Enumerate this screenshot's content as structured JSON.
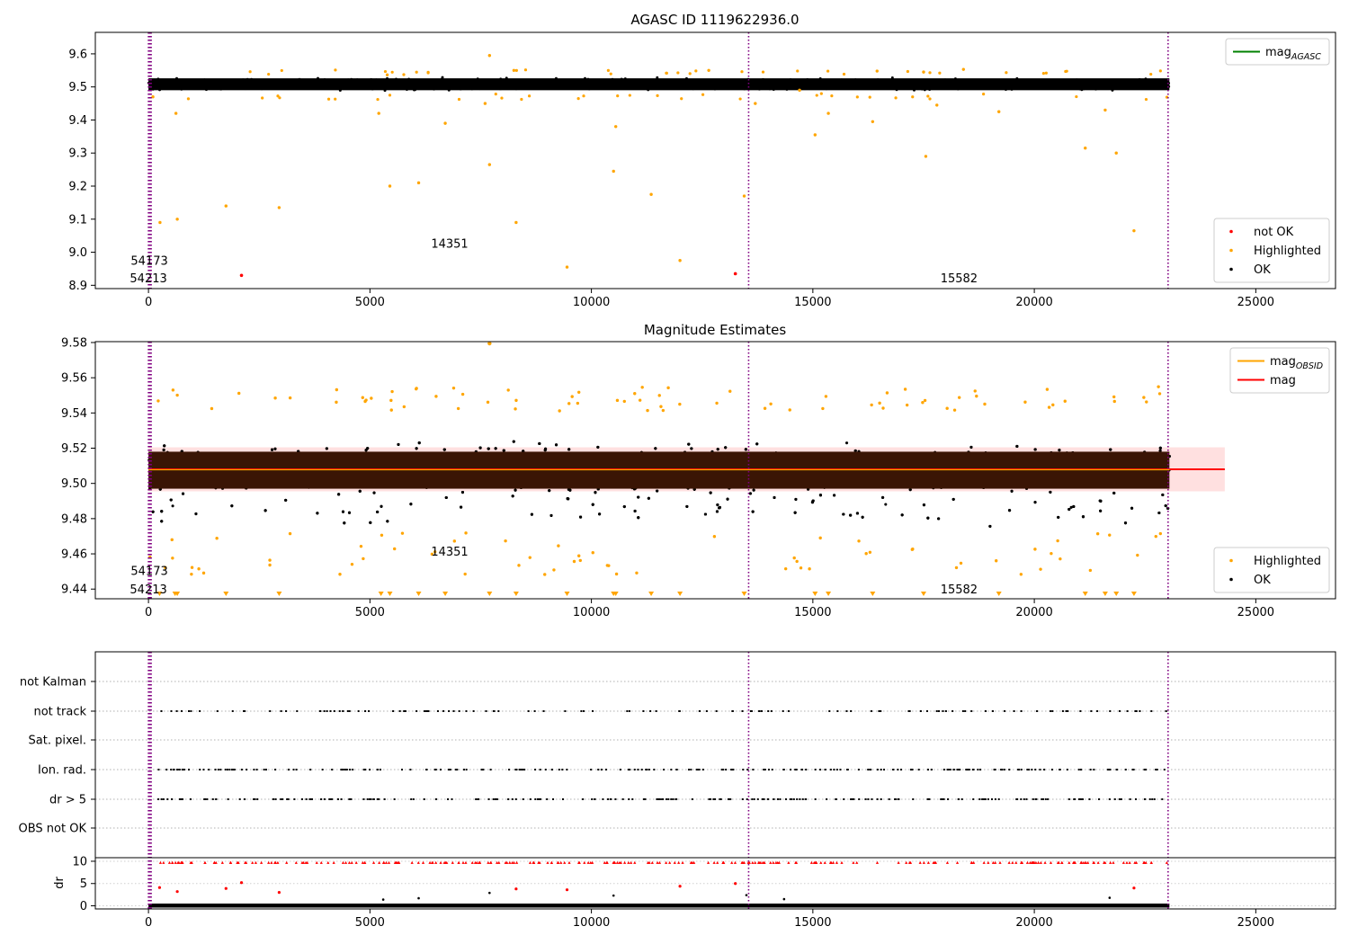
{
  "chart_data": [
    {
      "type": "scatter",
      "title": "AGASC ID 1119622936.0",
      "xlim": [
        -1200,
        26800
      ],
      "ylim": [
        8.89,
        9.665
      ],
      "xticks": [
        "0",
        "5000",
        "10000",
        "15000",
        "20000",
        "25000"
      ],
      "yticks": [
        "8.9",
        "9.0",
        "9.1",
        "9.2",
        "9.3",
        "9.4",
        "9.5",
        "9.6"
      ],
      "data_range": [
        0,
        23050
      ],
      "band": {
        "center": 9.508,
        "half_width": 0.03
      },
      "vlines": [
        0,
        20,
        40,
        60,
        13550,
        23020
      ],
      "annotations": [
        {
          "text": "54173",
          "x": 20,
          "y": 8.975
        },
        {
          "text": "54213",
          "x": 0,
          "y": 8.922
        },
        {
          "text": "14351",
          "x": 6800,
          "y": 9.028
        },
        {
          "text": "15582",
          "x": 18300,
          "y": 8.922
        }
      ],
      "highlighted": [
        [
          100,
          9.47
        ],
        [
          260,
          9.09
        ],
        [
          620,
          9.42
        ],
        [
          650,
          9.1
        ],
        [
          1750,
          9.14
        ],
        [
          2950,
          9.135
        ],
        [
          5200,
          9.42
        ],
        [
          5450,
          9.2
        ],
        [
          6100,
          9.21
        ],
        [
          6700,
          9.39
        ],
        [
          7600,
          9.45
        ],
        [
          7700,
          9.265
        ],
        [
          8300,
          9.09
        ],
        [
          9450,
          8.955
        ],
        [
          10500,
          9.245
        ],
        [
          10550,
          9.38
        ],
        [
          11350,
          9.175
        ],
        [
          12000,
          8.975
        ],
        [
          13450,
          9.17
        ],
        [
          13700,
          9.45
        ],
        [
          14700,
          9.49
        ],
        [
          15050,
          9.355
        ],
        [
          15350,
          9.42
        ],
        [
          16350,
          9.395
        ],
        [
          17550,
          9.29
        ],
        [
          17800,
          9.445
        ],
        [
          19200,
          9.425
        ],
        [
          21150,
          9.315
        ],
        [
          21600,
          9.43
        ],
        [
          21850,
          9.3
        ],
        [
          22250,
          9.065
        ],
        [
          7700,
          9.595
        ],
        [
          8250,
          9.55
        ],
        [
          12650,
          9.55
        ],
        [
          16450,
          9.548
        ],
        [
          18400,
          9.553
        ],
        [
          17500,
          9.545
        ]
      ],
      "not_ok": [
        [
          2100,
          8.93
        ],
        [
          13250,
          8.935
        ]
      ],
      "legends": [
        {
          "entries": [
            {
              "label": "mag",
              "sub": "AGASC",
              "color": "#008000",
              "kind": "line"
            }
          ],
          "loc": "upper right"
        },
        {
          "entries": [
            {
              "label": "not OK",
              "color": "#ff0000",
              "kind": "dot"
            },
            {
              "label": "Highlighted",
              "color": "#ffa500",
              "kind": "dot"
            },
            {
              "label": "OK",
              "color": "#000000",
              "kind": "dot"
            }
          ],
          "loc": "lower right"
        }
      ]
    },
    {
      "type": "scatter",
      "title": "Magnitude Estimates",
      "xlim": [
        -1200,
        26800
      ],
      "ylim": [
        9.4345,
        9.5805
      ],
      "xticks": [
        "0",
        "5000",
        "10000",
        "15000",
        "20000",
        "25000"
      ],
      "yticks": [
        "9.44",
        "9.46",
        "9.48",
        "9.50",
        "9.52",
        "9.54",
        "9.56",
        "9.58"
      ],
      "data_range": [
        0,
        23050
      ],
      "mag": 9.508,
      "band": {
        "center": 9.508,
        "half_width": 0.0125
      },
      "band_range": [
        0,
        24300
      ],
      "vlines": [
        0,
        20,
        40,
        60,
        13550,
        23020
      ],
      "annotations": [
        {
          "text": "54173",
          "x": 20,
          "y": 9.4505
        },
        {
          "text": "54213",
          "x": 0,
          "y": 9.4402
        },
        {
          "text": "14351",
          "x": 6800,
          "y": 9.4615
        },
        {
          "text": "15582",
          "x": 18300,
          "y": 9.4402
        }
      ],
      "offscale_markers_x": [
        250,
        600,
        650,
        1750,
        2950,
        5250,
        5450,
        6100,
        6700,
        7700,
        8300,
        9450,
        10500,
        10550,
        11350,
        12000,
        13450,
        15050,
        15350,
        16350,
        17500,
        19200,
        21150,
        21600,
        21850,
        22250
      ],
      "legends": [
        {
          "entries": [
            {
              "label": "mag",
              "sub": "OBSID",
              "color": "#ffa500",
              "kind": "line"
            },
            {
              "label": "mag",
              "color": "#ff0000",
              "kind": "line"
            }
          ],
          "loc": "upper right"
        },
        {
          "entries": [
            {
              "label": "Highlighted",
              "color": "#ffa500",
              "kind": "dot"
            },
            {
              "label": "OK",
              "color": "#000000",
              "kind": "dot"
            }
          ],
          "loc": "lower right"
        }
      ]
    },
    {
      "type": "scatter",
      "xlim": [
        -1200,
        26800
      ],
      "xticks": [
        "0",
        "5000",
        "10000",
        "15000",
        "20000",
        "25000"
      ],
      "flag_rows": [
        "not Kalman",
        "not track",
        "Sat. pixel.",
        "Ion. rad.",
        "dr > 5",
        "OBS not OK"
      ],
      "flag_density": [
        0,
        0.55,
        0,
        1,
        1,
        0
      ],
      "dr_ylabel": "dr",
      "dr_yticks": [
        "0",
        "5",
        "10"
      ],
      "dr_ylim": [
        -0.7,
        10.8
      ],
      "vlines": [
        0,
        20,
        40,
        60,
        13550,
        23020
      ]
    }
  ]
}
